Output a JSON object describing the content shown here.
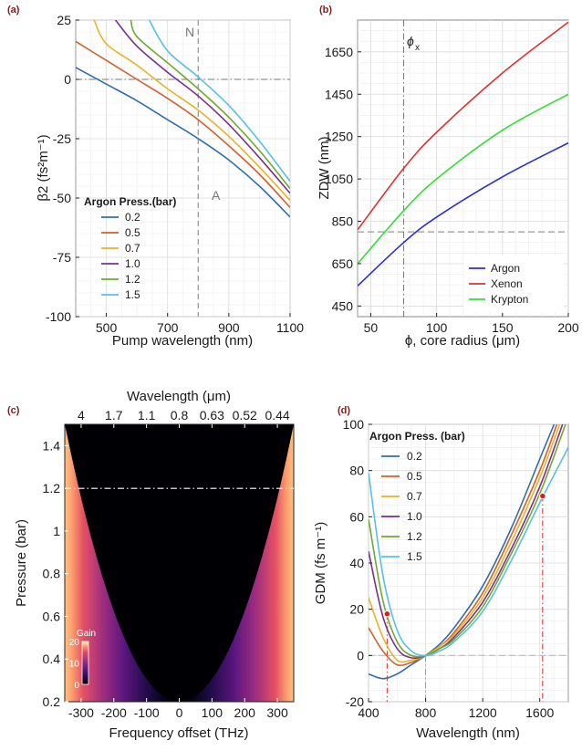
{
  "chart_data": [
    {
      "panel": "(a)",
      "type": "line",
      "xlabel": "Pump wavelength (nm)",
      "ylabel": "β2 (fs²m⁻¹)",
      "xlim": [
        400,
        1100
      ],
      "ylim": [
        -100,
        25
      ],
      "xticks": [
        500,
        700,
        900,
        1100
      ],
      "yticks": [
        25,
        0,
        -25,
        -50,
        -75,
        -100
      ],
      "grid": true,
      "legend_title": "Argon Press.(bar)",
      "legend_position": "middle-left",
      "annotations": [
        "N",
        "A"
      ],
      "vline_x": 800,
      "series": [
        {
          "name": "0.2",
          "color": "#2f6db3",
          "x": [
            400,
            500,
            600,
            700,
            800,
            900,
            1000,
            1100
          ],
          "values": [
            5,
            -2,
            -9,
            -17,
            -25,
            -34,
            -45,
            -58
          ]
        },
        {
          "name": "0.5",
          "color": "#d3602a",
          "x": [
            400,
            500,
            600,
            700,
            800,
            900,
            1000,
            1100
          ],
          "values": [
            16,
            8,
            0,
            -8,
            -17,
            -28,
            -40,
            -54
          ]
        },
        {
          "name": "0.7",
          "color": "#e8b325",
          "x": [
            460,
            500,
            600,
            700,
            800,
            900,
            1000,
            1100
          ],
          "values": [
            25,
            15,
            6,
            -4,
            -13,
            -24,
            -37,
            -51
          ]
        },
        {
          "name": "1.0",
          "color": "#7a2f8e",
          "x": [
            530,
            600,
            700,
            800,
            900,
            1000,
            1100
          ],
          "values": [
            25,
            14,
            3,
            -7,
            -19,
            -33,
            -48
          ]
        },
        {
          "name": "1.2",
          "color": "#6faa2d",
          "x": [
            580,
            600,
            700,
            800,
            900,
            1000,
            1100
          ],
          "values": [
            25,
            18,
            7,
            -4,
            -16,
            -30,
            -46
          ]
        },
        {
          "name": "1.5",
          "color": "#56c0e8",
          "x": [
            640,
            700,
            800,
            900,
            1000,
            1100
          ],
          "values": [
            25,
            12,
            1,
            -11,
            -26,
            -43
          ]
        }
      ]
    },
    {
      "panel": "(b)",
      "type": "line",
      "xlabel": "ϕ, core radius (μm)",
      "ylabel": "ZDW (nm)",
      "xlim": [
        40,
        200
      ],
      "ylim": [
        400,
        1800
      ],
      "xticks": [
        50,
        100,
        150,
        200
      ],
      "yticks": [
        450,
        650,
        850,
        1050,
        1250,
        1450,
        1650
      ],
      "grid": true,
      "legend_position": "bottom-right",
      "annotations": [
        "ϕ",
        "x"
      ],
      "hline_y": 800,
      "vline_x": 75,
      "series": [
        {
          "name": "Argon",
          "color": "#2b2bd9",
          "x": [
            40,
            75,
            100,
            150,
            200
          ],
          "values": [
            545,
            750,
            870,
            1060,
            1220
          ]
        },
        {
          "name": "Xenon",
          "color": "#e03030",
          "x": [
            40,
            75,
            100,
            150,
            200
          ],
          "values": [
            810,
            1100,
            1270,
            1550,
            1790
          ]
        },
        {
          "name": "Krypton",
          "color": "#30e030",
          "x": [
            40,
            75,
            100,
            150,
            200
          ],
          "values": [
            650,
            900,
            1050,
            1280,
            1450
          ]
        }
      ]
    },
    {
      "panel": "(c)",
      "type": "heatmap",
      "xlabel": "Frequency offset  (THz)",
      "ylabel": "Pressure (bar)",
      "top_xlabel": "Wavelength (μm)",
      "xlim": [
        -350,
        350
      ],
      "ylim": [
        0.2,
        1.5
      ],
      "xticks": [
        -300,
        -200,
        -100,
        0,
        100,
        200,
        300
      ],
      "yticks": [
        0.2,
        0.4,
        0.6,
        0.8,
        1.0,
        1.2,
        1.4
      ],
      "ytick_labels": [
        "0.2",
        "0.4",
        "0.6",
        "0.8",
        "1",
        "1.2",
        "1.4"
      ],
      "top_ticks": [
        "4",
        "1.7",
        "1.1",
        "0.8",
        "0.63",
        "0.52",
        "0.44"
      ],
      "hline_y": 1.2,
      "colorbar": {
        "label": "Gain",
        "min": 0,
        "max": 20,
        "ticks": [
          0,
          10,
          20
        ]
      }
    },
    {
      "panel": "(d)",
      "type": "line",
      "xlabel": "Wavelength (nm)",
      "ylabel": "GDM (fs m⁻¹)",
      "xlim": [
        400,
        1800
      ],
      "ylim": [
        -20,
        100
      ],
      "xticks": [
        400,
        800,
        1200,
        1600
      ],
      "yticks": [
        100,
        80,
        60,
        40,
        20,
        0,
        -20
      ],
      "grid": true,
      "legend_title": "Argon Press. (bar)",
      "legend_position": "top-left",
      "points": [
        [
          530,
          18
        ],
        [
          1620,
          69
        ]
      ],
      "series": [
        {
          "name": "0.2",
          "color": "#2f6db3",
          "x": [
            400,
            500,
            600,
            700,
            800,
            900,
            1000,
            1200,
            1400,
            1600,
            1700
          ],
          "values": [
            -8,
            -10,
            -8,
            -4,
            0,
            5,
            12,
            30,
            55,
            85,
            100
          ]
        },
        {
          "name": "0.5",
          "color": "#d3602a",
          "x": [
            400,
            500,
            600,
            700,
            800,
            900,
            1000,
            1200,
            1400,
            1600,
            1720
          ],
          "values": [
            12,
            2,
            -4,
            -3,
            0,
            4,
            10,
            27,
            52,
            80,
            100
          ]
        },
        {
          "name": "0.7",
          "color": "#e8b325",
          "x": [
            400,
            500,
            600,
            700,
            800,
            900,
            1000,
            1200,
            1400,
            1600,
            1740
          ],
          "values": [
            25,
            8,
            -2,
            -2,
            0,
            4,
            9,
            25,
            49,
            77,
            100
          ]
        },
        {
          "name": "1.0",
          "color": "#7a2f8e",
          "x": [
            400,
            500,
            600,
            700,
            800,
            900,
            1000,
            1200,
            1400,
            1600,
            1760
          ],
          "values": [
            45,
            17,
            3,
            -1,
            0,
            3,
            8,
            23,
            46,
            73,
            100
          ]
        },
        {
          "name": "1.2",
          "color": "#6faa2d",
          "x": [
            400,
            500,
            600,
            700,
            800,
            900,
            1000,
            1200,
            1400,
            1600,
            1780
          ],
          "values": [
            59,
            24,
            6,
            0,
            0,
            3,
            7,
            21,
            44,
            70,
            100
          ]
        },
        {
          "name": "1.5",
          "color": "#56c0e8",
          "x": [
            400,
            500,
            600,
            700,
            800,
            900,
            1000,
            1200,
            1400,
            1600,
            1800
          ],
          "values": [
            79,
            35,
            11,
            2,
            0,
            2,
            6,
            19,
            41,
            66,
            90
          ]
        }
      ]
    }
  ]
}
